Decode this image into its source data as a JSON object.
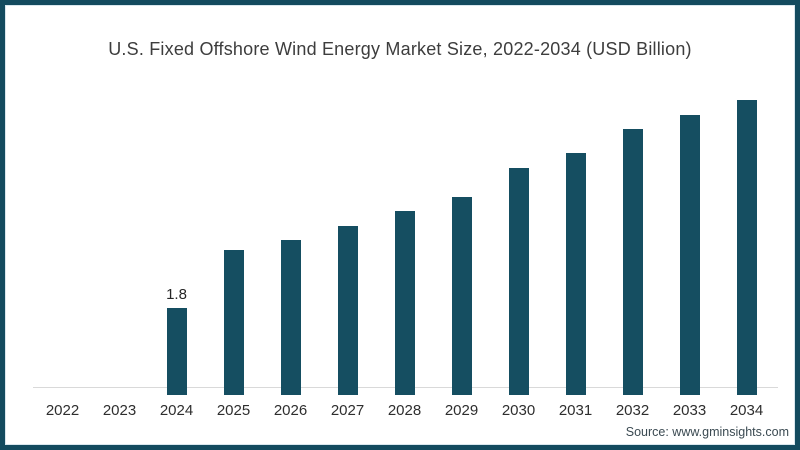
{
  "frame": {
    "border_color": "#134b5f",
    "inner_line_color": "#d9e7ee",
    "background": "#ffffff"
  },
  "chart_data": {
    "type": "bar",
    "title": "U.S. Fixed Offshore Wind Energy Market Size, 2022-2034 (USD Billion)",
    "categories": [
      "2022",
      "2023",
      "2024",
      "2025",
      "2026",
      "2027",
      "2028",
      "2029",
      "2030",
      "2031",
      "2032",
      "2033",
      "2034"
    ],
    "values": [
      0,
      0,
      1.8,
      3.0,
      3.2,
      3.5,
      3.8,
      4.1,
      4.7,
      5.0,
      5.5,
      5.8,
      6.1
    ],
    "shown_value_labels": {
      "2024": "1.8"
    },
    "bar_color": "#154e61",
    "axis_line_color": "#d9d9d9",
    "text_color": "#2e2e2e",
    "xlabel": "",
    "ylabel": "",
    "ylim": [
      0,
      6.5
    ],
    "grid": false,
    "legend": false
  },
  "source": {
    "text": "Source: www.gminsights.com"
  }
}
